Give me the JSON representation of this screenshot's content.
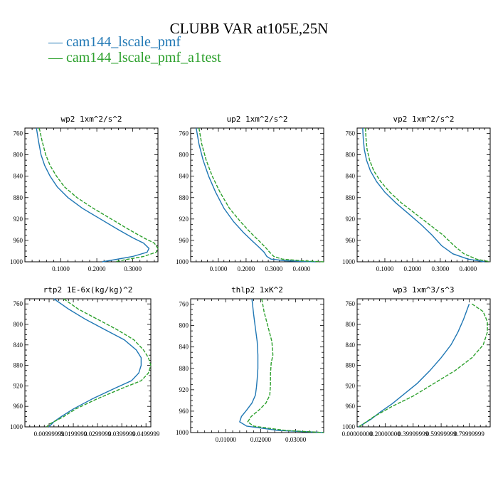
{
  "title": "CLUBB VAR at105E,25N",
  "legend": [
    {
      "label": "cam144_lscale_pmf",
      "color": "#1f77b4"
    },
    {
      "label": "cam144_lscale_pmf_a1test",
      "color": "#2ca02c"
    }
  ],
  "chart_data": [
    {
      "type": "line",
      "title": "wp2  1xm^2/s^2",
      "xlim": [
        0.0,
        0.37
      ],
      "ylim": [
        1000,
        750
      ],
      "yticks": [
        760,
        800,
        840,
        880,
        920,
        960,
        1000
      ],
      "xticks": [
        0.1,
        0.2,
        0.3
      ],
      "xtick_labels": [
        "0.1000",
        "0.2000",
        "0.3000"
      ],
      "series": [
        {
          "name": "cam144_lscale_pmf",
          "color": "#1f77b4",
          "dash": "",
          "x": [
            0.032,
            0.038,
            0.045,
            0.055,
            0.07,
            0.09,
            0.12,
            0.16,
            0.21,
            0.26,
            0.3,
            0.33,
            0.345,
            0.34,
            0.3,
            0.25,
            0.215
          ],
          "y": [
            750,
            775,
            800,
            820,
            840,
            860,
            880,
            900,
            920,
            940,
            955,
            965,
            975,
            982,
            990,
            996,
            1000
          ]
        },
        {
          "name": "cam144_lscale_pmf_a1test",
          "color": "#2ca02c",
          "dash": "5,2",
          "x": [
            0.04,
            0.048,
            0.058,
            0.07,
            0.088,
            0.11,
            0.145,
            0.19,
            0.24,
            0.29,
            0.33,
            0.36,
            0.37,
            0.365,
            0.33,
            0.28,
            0.25
          ],
          "y": [
            750,
            775,
            800,
            820,
            840,
            860,
            880,
            900,
            920,
            940,
            955,
            965,
            975,
            982,
            990,
            996,
            1000
          ]
        }
      ]
    },
    {
      "type": "line",
      "title": "up2  1xm^2/s^2",
      "xlim": [
        0.0,
        0.48
      ],
      "ylim": [
        1000,
        750
      ],
      "yticks": [
        760,
        800,
        840,
        880,
        920,
        960,
        1000
      ],
      "xticks": [
        0.1,
        0.2,
        0.3,
        0.4
      ],
      "xtick_labels": [
        "0.1000",
        "0.2000",
        "0.3000",
        "0.4000"
      ],
      "series": [
        {
          "name": "cam144_lscale_pmf",
          "color": "#1f77b4",
          "dash": "",
          "x": [
            0.02,
            0.03,
            0.045,
            0.065,
            0.09,
            0.12,
            0.155,
            0.19,
            0.22,
            0.245,
            0.265,
            0.275,
            0.29,
            0.34,
            0.45
          ],
          "y": [
            750,
            780,
            810,
            840,
            870,
            900,
            925,
            945,
            960,
            972,
            982,
            990,
            995,
            998,
            1000
          ]
        },
        {
          "name": "cam144_lscale_pmf_a1test",
          "color": "#2ca02c",
          "dash": "5,2",
          "x": [
            0.03,
            0.04,
            0.056,
            0.078,
            0.106,
            0.14,
            0.18,
            0.215,
            0.245,
            0.268,
            0.285,
            0.3,
            0.33,
            0.4,
            0.48
          ],
          "y": [
            750,
            780,
            810,
            840,
            870,
            900,
            925,
            945,
            960,
            972,
            982,
            990,
            995,
            998,
            1000
          ]
        }
      ]
    },
    {
      "type": "line",
      "title": "vp2  1xm^2/s^2",
      "xlim": [
        0.0,
        0.48
      ],
      "ylim": [
        1000,
        750
      ],
      "yticks": [
        760,
        800,
        840,
        880,
        920,
        960,
        1000
      ],
      "xticks": [
        0.1,
        0.2,
        0.3,
        0.4
      ],
      "xtick_labels": [
        "0.1000",
        "0.2000",
        "0.3000",
        "0.4000"
      ],
      "series": [
        {
          "name": "cam144_lscale_pmf",
          "color": "#1f77b4",
          "dash": "",
          "x": [
            0.02,
            0.022,
            0.026,
            0.034,
            0.048,
            0.07,
            0.1,
            0.14,
            0.185,
            0.23,
            0.27,
            0.305,
            0.345,
            0.4,
            0.46
          ],
          "y": [
            750,
            770,
            790,
            810,
            830,
            850,
            870,
            890,
            910,
            930,
            950,
            970,
            985,
            995,
            1000
          ]
        },
        {
          "name": "cam144_lscale_pmf_a1test",
          "color": "#2ca02c",
          "dash": "5,2",
          "x": [
            0.03,
            0.032,
            0.036,
            0.045,
            0.06,
            0.085,
            0.118,
            0.16,
            0.21,
            0.26,
            0.31,
            0.35,
            0.385,
            0.43,
            0.48
          ],
          "y": [
            750,
            770,
            790,
            810,
            830,
            850,
            870,
            890,
            910,
            930,
            950,
            970,
            985,
            995,
            1000
          ]
        }
      ]
    },
    {
      "type": "line",
      "title": "rtp2  1E-6x(kg/kg)^2",
      "xlim": [
        0.0,
        0.052
      ],
      "ylim": [
        1000,
        750
      ],
      "yticks": [
        760,
        800,
        840,
        880,
        920,
        960,
        1000
      ],
      "xticks": [
        0.01,
        0.02,
        0.03,
        0.04,
        0.05
      ],
      "xtick_labels": [
        "0.00999999",
        "0.0199999",
        "0.0299999",
        "0.0399999",
        "0.0499999"
      ],
      "series": [
        {
          "name": "cam144_lscale_pmf",
          "color": "#1f77b4",
          "dash": "",
          "x": [
            0.012,
            0.018,
            0.025,
            0.033,
            0.041,
            0.046,
            0.048,
            0.048,
            0.047,
            0.044,
            0.037,
            0.028,
            0.02,
            0.015,
            0.012,
            0.011,
            0.01
          ],
          "y": [
            750,
            770,
            790,
            810,
            830,
            850,
            865,
            880,
            895,
            910,
            925,
            945,
            965,
            980,
            990,
            995,
            1000
          ]
        },
        {
          "name": "cam144_lscale_pmf_a1test",
          "color": "#2ca02c",
          "dash": "5,2",
          "x": [
            0.016,
            0.022,
            0.03,
            0.038,
            0.045,
            0.049,
            0.051,
            0.052,
            0.051,
            0.048,
            0.04,
            0.03,
            0.021,
            0.016,
            0.012,
            0.01,
            0.009
          ],
          "y": [
            750,
            770,
            790,
            810,
            830,
            850,
            865,
            880,
            895,
            910,
            925,
            945,
            965,
            980,
            990,
            995,
            1000
          ]
        }
      ]
    },
    {
      "type": "line",
      "title": "thlp2  1xK^2",
      "xlim": [
        0.0,
        0.038
      ],
      "ylim": [
        1000,
        750
      ],
      "yticks": [
        760,
        800,
        840,
        880,
        920,
        960,
        1000
      ],
      "xticks": [
        0.01,
        0.02,
        0.03
      ],
      "xtick_labels": [
        "0.01000",
        "0.02000",
        "0.03000"
      ],
      "series": [
        {
          "name": "cam144_lscale_pmf",
          "color": "#1f77b4",
          "dash": "",
          "x": [
            0.0175,
            0.018,
            0.0185,
            0.019,
            0.0192,
            0.0192,
            0.019,
            0.0188,
            0.0185,
            0.0175,
            0.016,
            0.0145,
            0.014,
            0.016,
            0.025,
            0.038
          ],
          "y": [
            750,
            780,
            805,
            830,
            855,
            880,
            900,
            915,
            930,
            945,
            958,
            970,
            980,
            988,
            996,
            1000
          ]
        },
        {
          "name": "cam144_lscale_pmf_a1test",
          "color": "#2ca02c",
          "dash": "5,2",
          "x": [
            0.0203,
            0.021,
            0.022,
            0.0232,
            0.0235,
            0.023,
            0.0228,
            0.0228,
            0.0226,
            0.0215,
            0.0195,
            0.0173,
            0.0163,
            0.018,
            0.027,
            0.038
          ],
          "y": [
            750,
            775,
            800,
            830,
            855,
            870,
            890,
            910,
            930,
            945,
            958,
            970,
            980,
            988,
            996,
            1000
          ]
        }
      ]
    },
    {
      "type": "line",
      "title": "wp3  1xm^3/s^3",
      "xlim": [
        0.0,
        0.95
      ],
      "ylim": [
        1000,
        750
      ],
      "yticks": [
        760,
        800,
        840,
        880,
        920,
        960,
        1000
      ],
      "xticks": [
        0.0,
        0.2,
        0.4,
        0.6,
        0.8
      ],
      "xtick_labels": [
        "0.00000000",
        "0.20000000",
        "0.39999999",
        "0.59999999",
        "0.79999999"
      ],
      "series": [
        {
          "name": "cam144_lscale_pmf",
          "color": "#1f77b4",
          "dash": "",
          "x": [
            0.8,
            0.76,
            0.72,
            0.67,
            0.6,
            0.52,
            0.43,
            0.34,
            0.25,
            0.17,
            0.1,
            0.04,
            0.01
          ],
          "y": [
            760,
            790,
            815,
            840,
            865,
            890,
            915,
            935,
            955,
            970,
            985,
            995,
            1000
          ]
        },
        {
          "name": "cam144_lscale_pmf_a1test",
          "color": "#2ca02c",
          "dash": "5,2",
          "x": [
            0.82,
            0.9,
            0.93,
            0.93,
            0.9,
            0.82,
            0.7,
            0.55,
            0.4,
            0.25,
            0.12,
            0.04,
            0.01
          ],
          "y": [
            760,
            775,
            795,
            815,
            840,
            865,
            890,
            915,
            940,
            960,
            980,
            995,
            1000
          ]
        }
      ]
    }
  ]
}
